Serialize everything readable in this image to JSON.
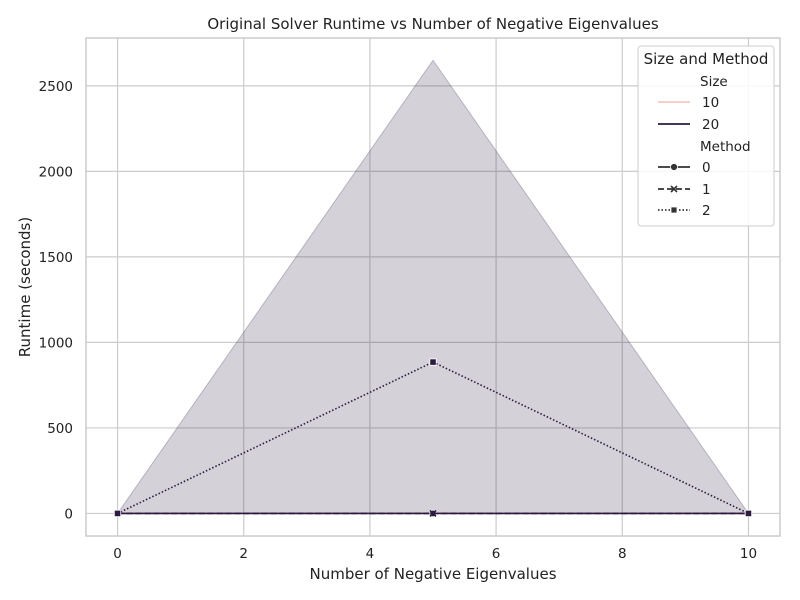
{
  "chart_data": {
    "type": "line",
    "title": "Original Solver Runtime vs Number of Negative Eigenvalues",
    "xlabel": "Number of Negative Eigenvalues",
    "ylabel": "Runtime (seconds)",
    "xlim": [
      -0.5,
      10.5
    ],
    "ylim": [
      -132,
      2780
    ],
    "xticks": [
      0,
      2,
      4,
      6,
      8,
      10
    ],
    "yticks": [
      0,
      500,
      1000,
      1500,
      2000,
      2500
    ],
    "grid": true,
    "legend": {
      "title": "Size and Method",
      "position": "top-right",
      "size_heading": "Size",
      "size_entries": [
        {
          "label": "10",
          "color": "#f4c8c0"
        },
        {
          "label": "20",
          "color": "#2c1a40"
        }
      ],
      "method_heading": "Method",
      "method_entries": [
        {
          "label": "0",
          "dash": "solid",
          "marker": "circle"
        },
        {
          "label": "1",
          "dash": "dashed",
          "marker": "x"
        },
        {
          "label": "2",
          "dash": "dotted",
          "marker": "square"
        }
      ]
    },
    "band": {
      "x": [
        0,
        5,
        10
      ],
      "lower": [
        0,
        0,
        0
      ],
      "upper": [
        0,
        2650,
        0
      ],
      "color": "#2c1a40",
      "opacity": 0.2
    },
    "series": [
      {
        "size": 20,
        "method": 0,
        "x": [
          0,
          5,
          10
        ],
        "y": [
          0,
          0,
          0
        ],
        "color": "#2c1a40",
        "dash": "solid",
        "marker": "circle"
      },
      {
        "size": 20,
        "method": 1,
        "x": [
          0,
          5,
          10
        ],
        "y": [
          0,
          0,
          0
        ],
        "color": "#2c1a40",
        "dash": "dashed",
        "marker": "x"
      },
      {
        "size": 20,
        "method": 2,
        "x": [
          0,
          5,
          10
        ],
        "y": [
          0,
          885,
          0
        ],
        "color": "#2c1a40",
        "dash": "dotted",
        "marker": "square"
      }
    ]
  }
}
